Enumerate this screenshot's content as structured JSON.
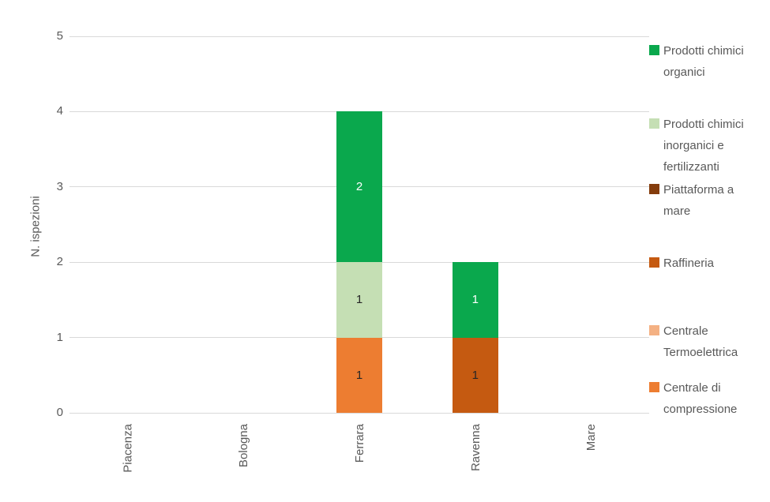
{
  "chart_data": {
    "type": "bar",
    "stacked": true,
    "title": "",
    "categories": [
      "Piacenza",
      "Bologna",
      "Ferrara",
      "Ravenna",
      "Mare"
    ],
    "series": [
      {
        "name": "Centrale di compressione",
        "color": "#ED7D31",
        "label_color": "#262626",
        "values": [
          0,
          0,
          1,
          0,
          0
        ]
      },
      {
        "name": "Centrale Termoelettrica",
        "color": "#F4B183",
        "label_color": "#262626",
        "values": [
          0,
          0,
          0,
          0,
          0
        ]
      },
      {
        "name": "Raffineria",
        "color": "#C55A11",
        "label_color": "#262626",
        "values": [
          0,
          0,
          0,
          1,
          0
        ]
      },
      {
        "name": "Piattaforma a mare",
        "color": "#843C0C",
        "label_color": "#FFFFFF",
        "values": [
          0,
          0,
          0,
          0,
          0
        ]
      },
      {
        "name": "Prodotti chimici inorganici e fertilizzanti",
        "color": "#C5DFB4",
        "label_color": "#262626",
        "values": [
          0,
          0,
          1,
          0,
          0
        ]
      },
      {
        "name": "Prodotti chimici organici",
        "color": "#0AA84D",
        "label_color": "#FFFFFF",
        "values": [
          0,
          0,
          2,
          1,
          0
        ]
      }
    ],
    "legend_order": [
      "Prodotti chimici organici",
      "Prodotti chimici inorganici e fertilizzanti",
      "Piattaforma a mare",
      "Raffineria",
      "Centrale Termoelettrica",
      "Centrale di compressione"
    ],
    "legend_position": "right",
    "xlabel": "",
    "ylabel": "N. ispezioni",
    "ylim": [
      0,
      5
    ],
    "yticks": [
      0,
      1,
      2,
      3,
      4,
      5
    ],
    "grid": true,
    "grid_color": "#D9D9D9",
    "axis_text_color": "#595959",
    "background": "#FFFFFF"
  }
}
